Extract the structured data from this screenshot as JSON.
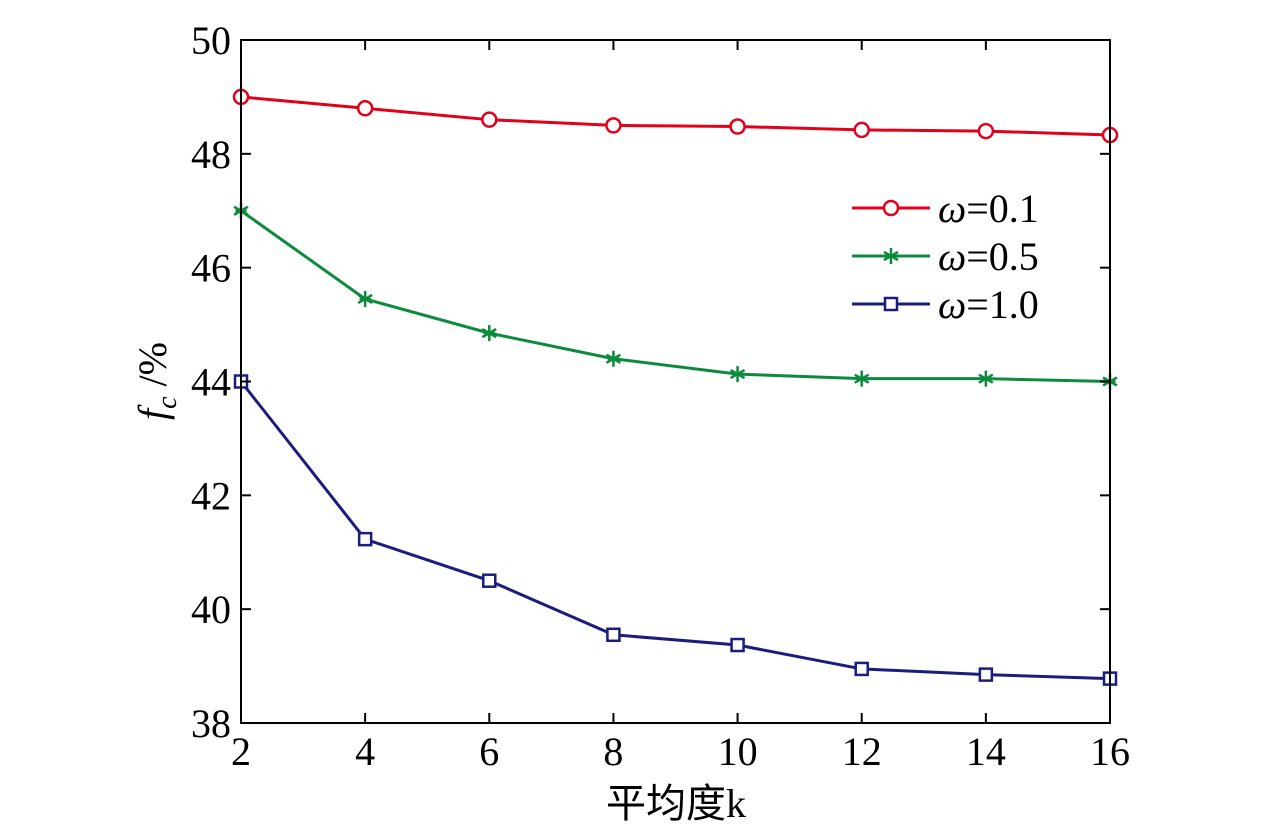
{
  "chart_data": {
    "type": "line",
    "xlabel": "平均度k",
    "ylabel": "f_c /%",
    "ylabel_parts": {
      "main": "f",
      "sub": "c",
      "rest": " /%"
    },
    "xlim": [
      2,
      16
    ],
    "ylim": [
      38,
      50
    ],
    "xticks": [
      2,
      4,
      6,
      8,
      10,
      12,
      14,
      16
    ],
    "yticks": [
      38,
      40,
      42,
      44,
      46,
      48,
      50
    ],
    "grid": false,
    "legend_position": "upper-right",
    "x": [
      2,
      4,
      6,
      8,
      10,
      12,
      14,
      16
    ],
    "series": [
      {
        "name": "ω=0.1",
        "name_sym": "ω",
        "name_val": "=0.1",
        "color": "#e2001a",
        "marker": "circle",
        "values": [
          49.0,
          48.8,
          48.6,
          48.5,
          48.48,
          48.42,
          48.4,
          48.33
        ]
      },
      {
        "name": "ω=0.5",
        "name_sym": "ω",
        "name_val": "=0.5",
        "color": "#0c8b3c",
        "marker": "star",
        "values": [
          47.0,
          45.45,
          44.85,
          44.4,
          44.13,
          44.05,
          44.05,
          44.0
        ]
      },
      {
        "name": "ω=1.0",
        "name_sym": "ω",
        "name_val": "=1.0",
        "color": "#1b1d7e",
        "marker": "square",
        "values": [
          44.0,
          41.23,
          40.5,
          39.55,
          39.37,
          38.95,
          38.85,
          38.78
        ]
      }
    ]
  }
}
